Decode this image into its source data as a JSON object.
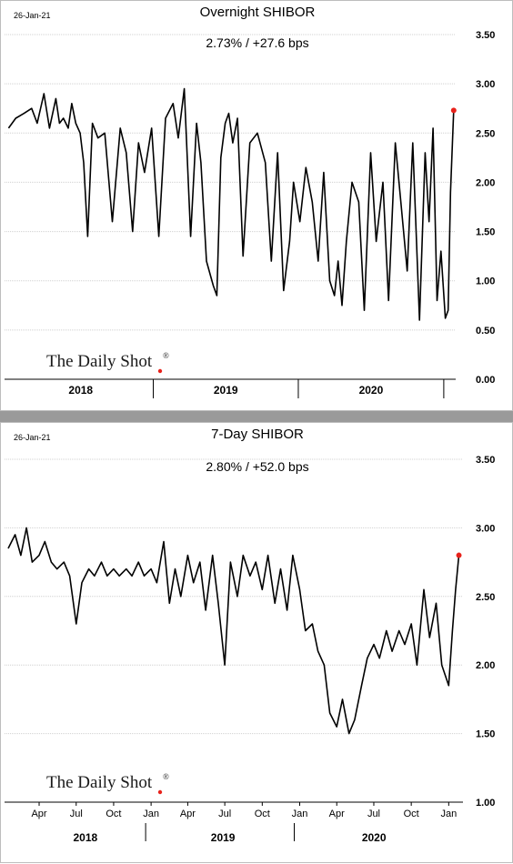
{
  "colors": {
    "line": "#000000",
    "last_point": "#e8221b",
    "grid": "#d0d0d0",
    "separator": "#9a9a9a",
    "logo_dot": "#e8221b"
  },
  "logo": {
    "text": "The Daily Shot",
    "mark": "®"
  },
  "chart_data": [
    {
      "type": "line",
      "date_label": "26-Jan-21",
      "title": "Overnight SHIBOR",
      "subtitle": "2.73%  /  +27.6 bps",
      "ylim": [
        0.0,
        3.5
      ],
      "yticks": [
        "0.00",
        "0.50",
        "1.00",
        "1.50",
        "2.00",
        "2.50",
        "3.00",
        "3.50"
      ],
      "grid": true,
      "xlim": [
        "2018-01-01",
        "2021-01-31"
      ],
      "year_labels": [
        "2018",
        "2019",
        "2020"
      ],
      "series": [
        {
          "x": [
            "2018-01-02",
            "2018-01-20",
            "2018-02-10",
            "2018-03-01",
            "2018-03-15",
            "2018-04-01",
            "2018-04-15",
            "2018-05-01",
            "2018-05-10",
            "2018-05-20",
            "2018-06-01",
            "2018-06-10",
            "2018-06-20",
            "2018-07-01",
            "2018-07-10",
            "2018-07-20",
            "2018-08-01",
            "2018-08-15",
            "2018-09-01",
            "2018-09-20",
            "2018-10-10",
            "2018-10-25",
            "2018-11-10",
            "2018-11-25",
            "2018-12-10",
            "2018-12-28",
            "2019-01-15",
            "2019-02-01",
            "2019-02-20",
            "2019-03-05",
            "2019-03-20",
            "2019-04-05",
            "2019-04-20",
            "2019-05-01",
            "2019-05-15",
            "2019-06-01",
            "2019-06-10",
            "2019-06-20",
            "2019-07-01",
            "2019-07-10",
            "2019-07-20",
            "2019-08-01",
            "2019-08-15",
            "2019-09-01",
            "2019-09-20",
            "2019-10-10",
            "2019-10-25",
            "2019-11-10",
            "2019-11-25",
            "2019-12-10",
            "2019-12-20",
            "2020-01-05",
            "2020-01-20",
            "2020-02-05",
            "2020-02-20",
            "2020-03-05",
            "2020-03-20",
            "2020-04-01",
            "2020-04-10",
            "2020-04-20",
            "2020-05-01",
            "2020-05-15",
            "2020-06-01",
            "2020-06-15",
            "2020-07-01",
            "2020-07-15",
            "2020-08-01",
            "2020-08-15",
            "2020-09-01",
            "2020-09-15",
            "2020-10-01",
            "2020-10-15",
            "2020-11-01",
            "2020-11-15",
            "2020-11-25",
            "2020-12-05",
            "2020-12-15",
            "2020-12-25",
            "2021-01-05",
            "2021-01-12",
            "2021-01-18",
            "2021-01-26"
          ],
          "values": [
            2.55,
            2.65,
            2.7,
            2.75,
            2.6,
            2.9,
            2.55,
            2.85,
            2.6,
            2.65,
            2.55,
            2.8,
            2.6,
            2.5,
            2.2,
            1.45,
            2.6,
            2.45,
            2.5,
            1.6,
            2.55,
            2.3,
            1.5,
            2.4,
            2.1,
            2.55,
            1.45,
            2.65,
            2.8,
            2.45,
            2.95,
            1.45,
            2.6,
            2.2,
            1.2,
            0.95,
            0.85,
            2.25,
            2.6,
            2.7,
            2.4,
            2.65,
            1.25,
            2.4,
            2.5,
            2.2,
            1.2,
            2.3,
            0.9,
            1.4,
            2.0,
            1.6,
            2.15,
            1.8,
            1.2,
            2.1,
            1.0,
            0.85,
            1.2,
            0.75,
            1.4,
            2.0,
            1.8,
            0.7,
            2.3,
            1.4,
            2.0,
            0.8,
            2.4,
            1.8,
            1.1,
            2.4,
            0.6,
            2.3,
            1.6,
            2.55,
            0.8,
            1.3,
            0.62,
            0.7,
            1.9,
            2.73
          ]
        }
      ]
    },
    {
      "type": "line",
      "date_label": "26-Jan-21",
      "title": "7-Day SHIBOR",
      "subtitle": "2.80%  /  +52.0 bps",
      "ylim": [
        1.0,
        3.5
      ],
      "yticks": [
        "1.00",
        "1.50",
        "2.00",
        "2.50",
        "3.00",
        "3.50"
      ],
      "grid": true,
      "xlim": [
        "2018-01-15",
        "2021-02-05"
      ],
      "month_labels": [
        "Apr",
        "Jul",
        "Oct",
        "Jan",
        "Apr",
        "Jul",
        "Oct",
        "Jan",
        "Apr",
        "Jul",
        "Oct",
        "Jan"
      ],
      "month_dates": [
        "2018-04-01",
        "2018-07-01",
        "2018-10-01",
        "2019-01-01",
        "2019-04-01",
        "2019-07-01",
        "2019-10-01",
        "2020-01-01",
        "2020-04-01",
        "2020-07-01",
        "2020-10-01",
        "2021-01-01"
      ],
      "year_labels": [
        "2018",
        "2019",
        "2020"
      ],
      "series": [
        {
          "x": [
            "2018-01-15",
            "2018-02-01",
            "2018-02-15",
            "2018-03-01",
            "2018-03-15",
            "2018-04-01",
            "2018-04-15",
            "2018-05-01",
            "2018-05-15",
            "2018-06-01",
            "2018-06-15",
            "2018-07-01",
            "2018-07-15",
            "2018-08-01",
            "2018-08-15",
            "2018-09-01",
            "2018-09-15",
            "2018-10-01",
            "2018-10-15",
            "2018-11-01",
            "2018-11-15",
            "2018-12-01",
            "2018-12-15",
            "2019-01-01",
            "2019-01-15",
            "2019-02-01",
            "2019-02-15",
            "2019-03-01",
            "2019-03-15",
            "2019-04-01",
            "2019-04-15",
            "2019-05-01",
            "2019-05-15",
            "2019-06-01",
            "2019-06-15",
            "2019-07-01",
            "2019-07-15",
            "2019-08-01",
            "2019-08-15",
            "2019-09-01",
            "2019-09-15",
            "2019-10-01",
            "2019-10-15",
            "2019-11-01",
            "2019-11-15",
            "2019-12-01",
            "2019-12-15",
            "2020-01-01",
            "2020-01-15",
            "2020-02-01",
            "2020-02-15",
            "2020-03-01",
            "2020-03-15",
            "2020-04-01",
            "2020-04-15",
            "2020-05-01",
            "2020-05-15",
            "2020-06-01",
            "2020-06-15",
            "2020-07-01",
            "2020-07-15",
            "2020-08-01",
            "2020-08-15",
            "2020-09-01",
            "2020-09-15",
            "2020-10-01",
            "2020-10-15",
            "2020-11-01",
            "2020-11-15",
            "2020-12-01",
            "2020-12-15",
            "2021-01-01",
            "2021-01-10",
            "2021-01-18",
            "2021-01-26"
          ],
          "values": [
            2.85,
            2.95,
            2.8,
            3.0,
            2.75,
            2.8,
            2.9,
            2.75,
            2.7,
            2.75,
            2.65,
            2.3,
            2.6,
            2.7,
            2.65,
            2.75,
            2.65,
            2.7,
            2.65,
            2.7,
            2.65,
            2.75,
            2.65,
            2.7,
            2.6,
            2.9,
            2.45,
            2.7,
            2.5,
            2.8,
            2.6,
            2.75,
            2.4,
            2.8,
            2.45,
            2.0,
            2.75,
            2.5,
            2.8,
            2.65,
            2.75,
            2.55,
            2.8,
            2.45,
            2.7,
            2.4,
            2.8,
            2.55,
            2.25,
            2.3,
            2.1,
            2.0,
            1.65,
            1.55,
            1.75,
            1.5,
            1.6,
            1.85,
            2.05,
            2.15,
            2.05,
            2.25,
            2.1,
            2.25,
            2.15,
            2.3,
            2.0,
            2.55,
            2.2,
            2.45,
            2.0,
            1.85,
            2.25,
            2.55,
            2.8
          ]
        }
      ]
    }
  ]
}
